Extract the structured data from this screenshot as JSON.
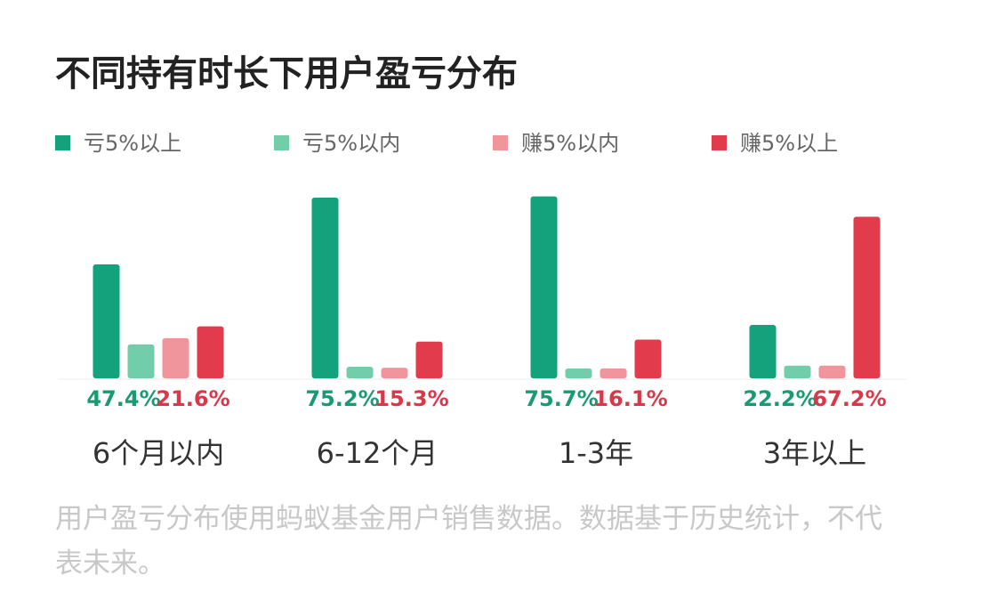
{
  "chart_data": {
    "type": "bar",
    "title": "不同持有时长下用户盈亏分布",
    "categories": [
      "6个月以内",
      "6-12个月",
      "1-3年",
      "3年以上"
    ],
    "series": [
      {
        "name": "亏5%以上",
        "color": "#13a27b",
        "values": [
          47.4,
          75.2,
          75.7,
          22.2
        ],
        "value_labels": [
          "47.4%",
          "75.2%",
          "75.7%",
          "22.2%"
        ],
        "label_color": "#1a9a74"
      },
      {
        "name": "亏5%以内",
        "color": "#72cdab",
        "values": [
          14.1,
          4.8,
          4.1,
          5.3
        ]
      },
      {
        "name": "赚5%以内",
        "color": "#f1959d",
        "values": [
          16.7,
          4.4,
          4.1,
          5.3
        ]
      },
      {
        "name": "赚5%以上",
        "color": "#e23b4b",
        "values": [
          21.6,
          15.3,
          16.1,
          67.2
        ],
        "value_labels": [
          "21.6%",
          "15.3%",
          "16.1%",
          "67.2%"
        ],
        "label_color": "#d8384a"
      }
    ],
    "note": "用户盈亏分布使用蚂蚁基金用户销售数据。数据基于历史统计，不代表未来。"
  }
}
